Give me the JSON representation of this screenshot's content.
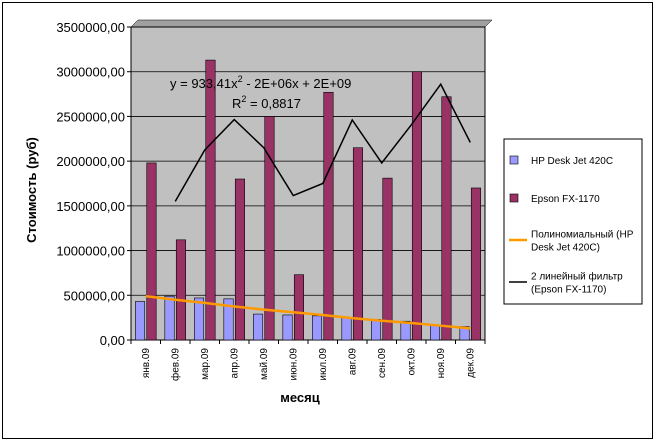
{
  "colors": {
    "plot_bg": "#c0c0c0",
    "hp_bar": "#9999ff",
    "epson_bar": "#993366",
    "trend_poly": "#ff9900",
    "moving_avg": "#000000",
    "grid": "#000000"
  },
  "chart_data": {
    "type": "bar",
    "title": "",
    "xlabel": "месяц",
    "ylabel": "Стоимость (руб)",
    "ylim": [
      0,
      3500000
    ],
    "ytick_step": 500000,
    "ytick_labels": [
      "0,00",
      "500000,00",
      "1000000,00",
      "1500000,00",
      "2000000,00",
      "2500000,00",
      "3000000,00",
      "3500000,00"
    ],
    "grid": "horizontal",
    "legend_position": "right",
    "categories": [
      "янв.09",
      "фев.09",
      "мар.09",
      "апр.09",
      "май.09",
      "июн.09",
      "июл.09",
      "авг.09",
      "сен.09",
      "окт.09",
      "ноя.09",
      "дек.09"
    ],
    "series": [
      {
        "name": "HP Desk Jet 420C",
        "kind": "bar",
        "color": "hp_bar",
        "values": [
          430000,
          490000,
          470000,
          460000,
          290000,
          280000,
          270000,
          250000,
          230000,
          210000,
          160000,
          150000
        ]
      },
      {
        "name": "Epson FX-1170",
        "kind": "bar",
        "color": "epson_bar",
        "values": [
          1980000,
          1120000,
          3130000,
          1800000,
          2500000,
          730000,
          2770000,
          2150000,
          1810000,
          3000000,
          2720000,
          1700000
        ]
      }
    ],
    "trendlines": [
      {
        "name": "Полиномиальный (HP Desk Jet 420C)",
        "legend_lines": [
          "Полиномиальный (HP",
          "Desk Jet 420C)"
        ],
        "kind": "polynomial",
        "of_series": "HP Desk Jet 420C",
        "color": "trend_poly",
        "values": [
          490000,
          450000,
          415000,
          375000,
          340000,
          310000,
          280000,
          245000,
          215000,
          190000,
          160000,
          130000
        ]
      },
      {
        "name": "2 линейный фильтр (Epson FX-1170)",
        "legend_lines": [
          "2 линейный фильтр",
          "(Epson FX-1170)"
        ],
        "kind": "moving_average",
        "period": 2,
        "of_series": "Epson FX-1170",
        "color": "moving_avg",
        "values": [
          null,
          1550000,
          2125000,
          2465000,
          2150000,
          1615000,
          1750000,
          2460000,
          1980000,
          2405000,
          2860000,
          2210000
        ]
      }
    ],
    "annotations": {
      "equation_prefix": "y = 933,41x",
      "equation_exponent": "2",
      "equation_suffix": " - 2E+06x + 2E+09",
      "r2_prefix": "R",
      "r2_exponent": "2",
      "r2_suffix": " = 0,8817"
    }
  }
}
